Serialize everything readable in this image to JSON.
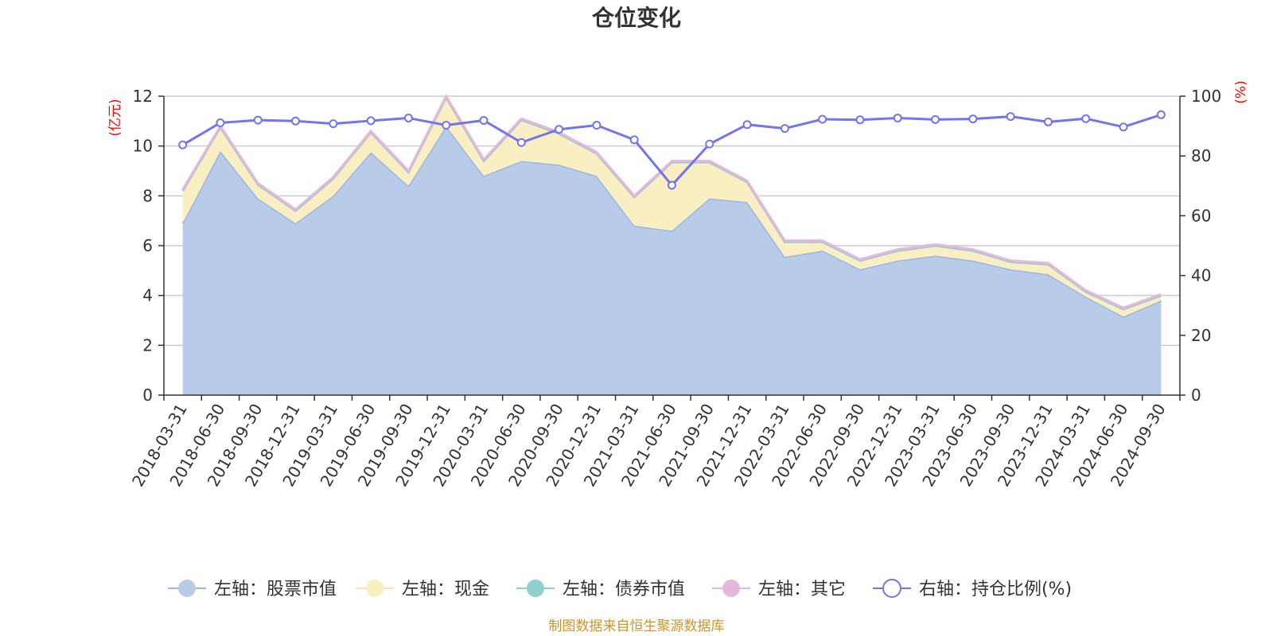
{
  "chart_data": {
    "type": "area",
    "title": "仓位变化",
    "y_left_unit": "(亿元)",
    "y_right_unit": "(%)",
    "y_left_range": [
      0,
      12
    ],
    "y_left_ticks": [
      "0",
      "2",
      "4",
      "6",
      "8",
      "10",
      "12"
    ],
    "y_right_range": [
      0,
      100
    ],
    "y_right_ticks": [
      "0",
      "20",
      "40",
      "60",
      "80",
      "100"
    ],
    "grid": true,
    "legend_position": "bottom",
    "categories": [
      "2018-03-31",
      "2018-06-30",
      "2018-09-30",
      "2018-12-31",
      "2019-03-31",
      "2019-06-30",
      "2019-09-30",
      "2019-12-31",
      "2020-03-31",
      "2020-06-30",
      "2020-09-30",
      "2020-12-31",
      "2021-03-31",
      "2021-06-30",
      "2021-09-30",
      "2021-12-31",
      "2022-03-31",
      "2022-06-30",
      "2022-09-30",
      "2022-12-31",
      "2023-03-31",
      "2023-06-30",
      "2023-09-30",
      "2023-12-31",
      "2024-03-31",
      "2024-06-30",
      "2024-09-30"
    ],
    "series": [
      {
        "name": "左轴：股票市值",
        "axis": "left",
        "color": "#9bb7e0",
        "fill": "#b8cbe9",
        "values": [
          6.9,
          9.8,
          7.9,
          6.9,
          8.0,
          9.75,
          8.4,
          10.8,
          8.8,
          9.4,
          9.25,
          8.8,
          6.8,
          6.6,
          7.9,
          7.75,
          5.55,
          5.8,
          5.05,
          5.4,
          5.6,
          5.4,
          5.05,
          4.85,
          3.95,
          3.15,
          3.8
        ]
      },
      {
        "name": "左轴：现金",
        "axis": "left",
        "color": "#f7e6a3",
        "fill": "#faeec3",
        "values": [
          1.3,
          0.95,
          0.55,
          0.5,
          0.7,
          0.8,
          0.55,
          1.15,
          0.6,
          1.65,
          1.25,
          0.9,
          1.15,
          2.75,
          1.45,
          0.8,
          0.6,
          0.35,
          0.35,
          0.4,
          0.4,
          0.4,
          0.3,
          0.4,
          0.2,
          0.3,
          0.2
        ]
      },
      {
        "name": "左轴：债券市值",
        "axis": "left",
        "color": "#8fcfcf",
        "fill": "#8fcfcf",
        "values": [
          0,
          0,
          0,
          0,
          0,
          0,
          0,
          0,
          0,
          0,
          0,
          0,
          0,
          0,
          0,
          0,
          0,
          0,
          0,
          0,
          0,
          0,
          0,
          0,
          0,
          0,
          0
        ]
      },
      {
        "name": "左轴：其它",
        "axis": "left",
        "color": "#e6b6db",
        "fill": "#e6b6db",
        "values": [
          0.05,
          0.05,
          0.05,
          0.05,
          0.05,
          0.05,
          0.05,
          0.05,
          0.05,
          0.05,
          0.05,
          0.05,
          0.05,
          0.05,
          0.05,
          0.05,
          0.05,
          0.05,
          0.05,
          0.05,
          0.05,
          0.05,
          0.05,
          0.05,
          0.05,
          0.05,
          0.05
        ]
      },
      {
        "name": "右轴：持仓比例(%)",
        "axis": "right",
        "color": "#7474ee",
        "values": [
          83.7,
          91.1,
          92.0,
          91.7,
          90.8,
          91.8,
          92.7,
          90.3,
          91.9,
          84.5,
          88.9,
          90.3,
          85.4,
          70.2,
          84.0,
          90.5,
          89.2,
          92.3,
          92.1,
          92.7,
          92.2,
          92.4,
          93.2,
          91.4,
          92.5,
          89.7,
          93.8
        ]
      }
    ]
  },
  "footer": {
    "source": "制图数据来自恒生聚源数据库"
  }
}
